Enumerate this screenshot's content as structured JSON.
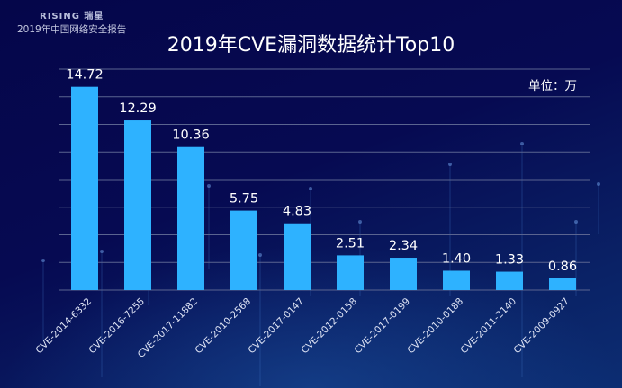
{
  "header": {
    "logo_text": "RISING 瑞星",
    "report_name": "2019年中国网络安全报告"
  },
  "colors": {
    "bar": "#2eb2ff",
    "grid": "#5a6490",
    "text": "#ffffff"
  },
  "chart_data": {
    "type": "bar",
    "title": "2019年CVE漏洞数据统计Top10",
    "unit_label": "单位：万",
    "xlabel": "",
    "ylabel": "",
    "ylim": [
      0,
      16
    ],
    "grid": true,
    "categories": [
      "CVE-2014-6332",
      "CVE-2016-7255",
      "CVE-2017-11882",
      "CVE-2010-2568",
      "CVE-2017-0147",
      "CVE-2012-0158",
      "CVE-2017-0199",
      "CVE-2010-0188",
      "CVE-2011-2140",
      "CVE-2009-0927"
    ],
    "values": [
      14.72,
      12.29,
      10.36,
      5.75,
      4.83,
      2.51,
      2.34,
      1.4,
      1.33,
      0.86
    ],
    "value_labels": [
      "14.72",
      "12.29",
      "10.36",
      "5.75",
      "4.83",
      "2.51",
      "2.34",
      "1.40",
      "1.33",
      "0.86"
    ]
  }
}
